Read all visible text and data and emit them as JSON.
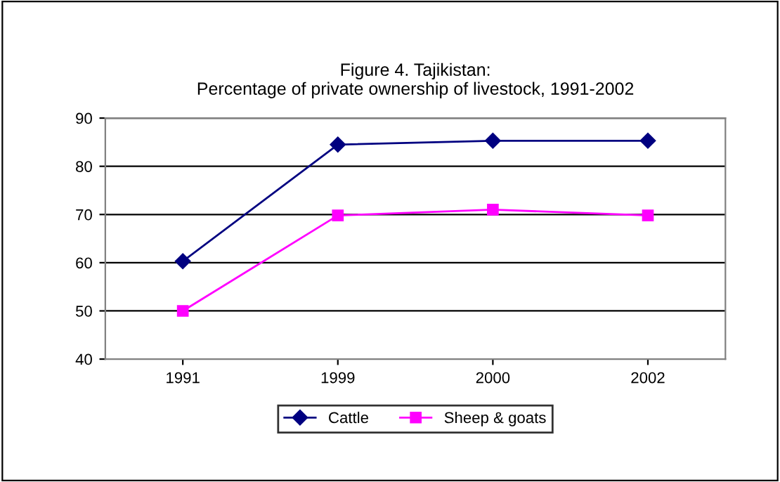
{
  "chart_data": {
    "type": "line",
    "title": "Figure 4. Tajikistan:\nPercentage of private ownership of livestock, 1991-2002",
    "categories": [
      "1991",
      "1999",
      "2000",
      "2002"
    ],
    "series": [
      {
        "name": "Cattle",
        "color": "#000080",
        "values": [
          60.3,
          84.5,
          85.3,
          85.3
        ],
        "marker": "diamond"
      },
      {
        "name": "Sheep & goats",
        "color": "#ff00ff",
        "values": [
          50.0,
          69.8,
          71.0,
          69.8
        ],
        "marker": "square"
      }
    ],
    "ylim": [
      40,
      90
    ],
    "yticks": [
      40,
      50,
      60,
      70,
      80,
      90
    ],
    "grid": "y",
    "legend": "bottom",
    "line_style": "solid"
  }
}
